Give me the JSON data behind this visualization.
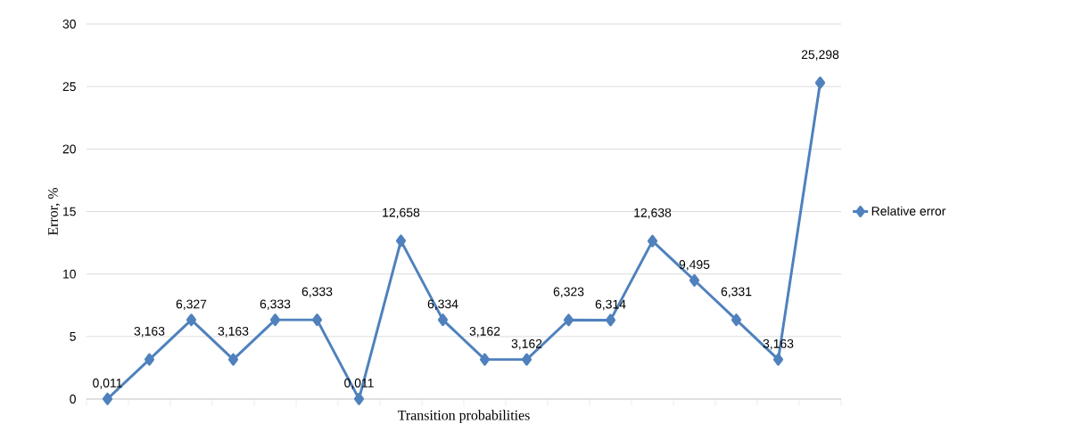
{
  "chart_data": {
    "type": "line",
    "xlabel": "Transition probabilities",
    "ylabel": "Error, %",
    "categories": [
      null,
      null,
      null,
      null,
      null,
      null,
      null,
      null,
      null,
      null,
      null,
      null,
      null,
      null,
      null,
      null,
      null,
      null
    ],
    "series": [
      {
        "name": "Relative error",
        "color": "#4f81bd",
        "values": [
          0.011,
          3.163,
          6.327,
          3.163,
          6.333,
          6.333,
          0.011,
          12.658,
          6.334,
          3.162,
          3.162,
          6.323,
          6.314,
          12.638,
          9.495,
          6.331,
          3.163,
          25.298
        ],
        "value_labels": [
          "0,011",
          "3,163",
          "6,327",
          "3,163",
          "6,333",
          "6,333",
          "0,011",
          "12,658",
          "6,334",
          "3,162",
          "3,162",
          "6,323",
          "6,314",
          "12,638",
          "9,495",
          "6,331",
          "3,163",
          "25,298"
        ]
      }
    ],
    "ylim": [
      0,
      30
    ],
    "yticks": [
      0,
      5,
      10,
      15,
      20,
      25,
      30
    ],
    "grid": "y",
    "legend": "right",
    "marker": "diamond",
    "line_style": "solid",
    "tick_labels": "y"
  }
}
